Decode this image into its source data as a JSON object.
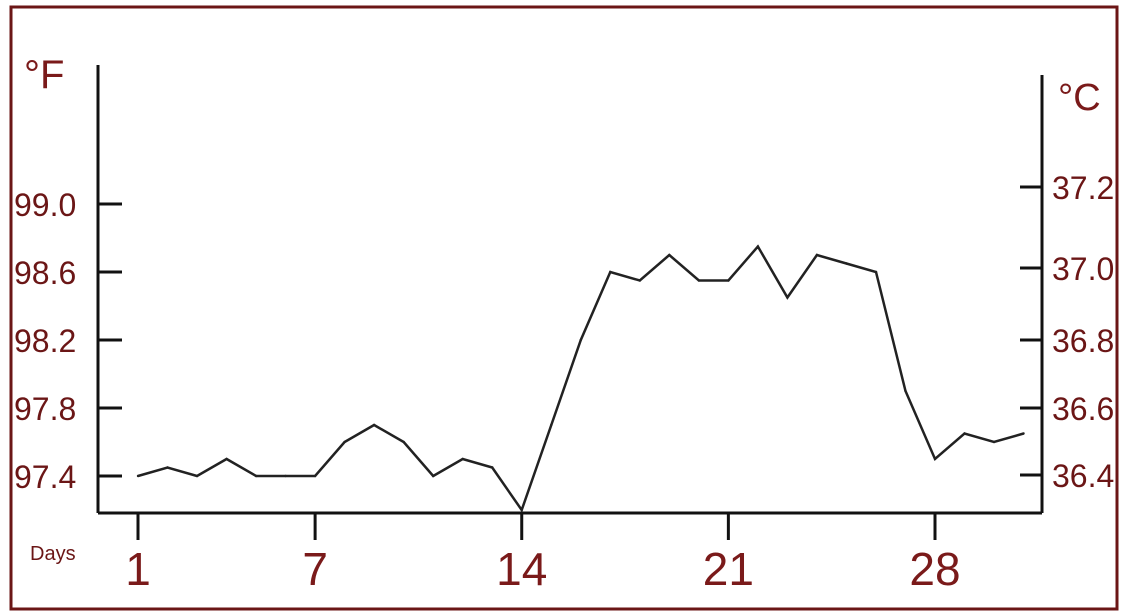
{
  "chart_data": {
    "type": "line",
    "title": "",
    "xlabel": "Days",
    "ylabel_left": "°F",
    "ylabel_right": "°C",
    "x_ticks": [
      "1",
      "7",
      "14",
      "21",
      "28"
    ],
    "y_left_ticks": [
      "99.0",
      "98.6",
      "98.2",
      "97.8",
      "97.4"
    ],
    "y_right_ticks": [
      "37.2",
      "37.0",
      "36.8",
      "36.6",
      "36.4"
    ],
    "ylim_f": [
      97.2,
      99.6
    ],
    "xlim_days": [
      1,
      31
    ],
    "grid": false,
    "series": [
      {
        "x": [
          1,
          2,
          3,
          4,
          5,
          6,
          7,
          8,
          9,
          10,
          11,
          12,
          13,
          14,
          15,
          16,
          17,
          18,
          19,
          20,
          21,
          22,
          23,
          24,
          25,
          26,
          27,
          28,
          29,
          30,
          31
        ],
        "y": [
          97.4,
          97.45,
          97.4,
          97.5,
          97.4,
          97.4,
          97.4,
          97.6,
          97.7,
          97.6,
          97.4,
          97.5,
          97.45,
          97.2,
          97.7,
          98.2,
          98.6,
          98.55,
          98.7,
          98.55,
          98.55,
          98.75,
          98.45,
          98.7,
          98.65,
          98.6,
          97.9,
          97.5,
          97.65,
          97.6,
          97.65
        ]
      }
    ],
    "colors": {
      "frame": "#6b1616",
      "line": "#222222",
      "axis": "#111111",
      "tick_text": "#6b1616"
    }
  }
}
